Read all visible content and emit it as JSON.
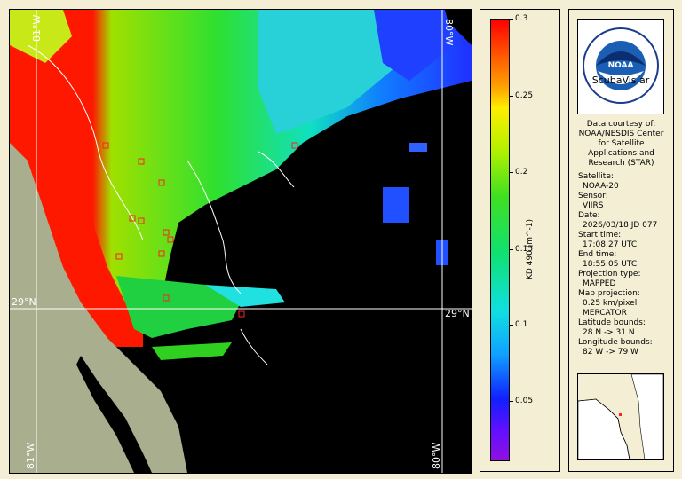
{
  "map": {
    "grid_labels": {
      "lat_left": "29°N",
      "lat_right": "29°N",
      "lon_top": "80°W",
      "lon_bottom": "80°W",
      "lon_left_top": "81°W",
      "lon_left_bottom": "81°W"
    },
    "colors": {
      "land": "#a9ae8e",
      "no_data": "#000000",
      "grid": "#ffffff",
      "station_marker": "#ff2020"
    }
  },
  "colorbar": {
    "title": "KD 490 (m^-1)",
    "ticks": [
      "0.3",
      "0.25",
      "0.2",
      "0.15",
      "0.1",
      "0.05"
    ],
    "range": [
      0.0,
      0.3
    ]
  },
  "info": {
    "logo_text": "ScubaVis.ar",
    "logo_ring_text": "NATIONAL OCEANIC AND ATMOSPHERIC ADMINISTRATION",
    "logo_ring_text_bottom": "U.S. DEPARTMENT OF COMMERCE",
    "logo_center": "NOAA",
    "credit_lines": [
      "Data courtesy of:",
      "NOAA/NESDIS Center",
      "for Satellite",
      "Applications and",
      "Research (STAR)"
    ],
    "fields": [
      {
        "label": "Satellite:",
        "value": "NOAA-20"
      },
      {
        "label": "Sensor:",
        "value": "VIIRS"
      },
      {
        "label": "Date:",
        "value": "2026/03/18 JD 077"
      },
      {
        "label": "Start time:",
        "value": "17:08:27 UTC"
      },
      {
        "label": "End time:",
        "value": "18:55:05 UTC"
      },
      {
        "label": "Projection type:",
        "value": "MAPPED"
      },
      {
        "label": "Map projection:",
        "value": "0.25 km/pixel"
      }
    ],
    "projection_extra": "MERCATOR",
    "lat_bounds_label": "Latitude bounds:",
    "lat_bounds_value": "28 N -> 31 N",
    "lon_bounds_label": "Longitude bounds:",
    "lon_bounds_value": "82 W -> 79 W"
  }
}
